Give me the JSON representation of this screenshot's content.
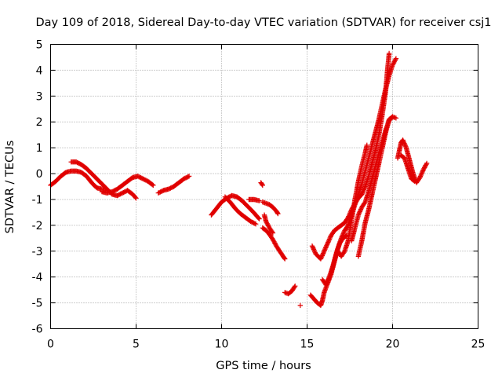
{
  "chart_data": {
    "type": "scatter",
    "title": "Day 109 of 2018, Sidereal Day-to-day VTEC variation (SDTVAR) for receiver csj1",
    "xlabel": "GPS time / hours",
    "ylabel": "SDTVAR / TECUs",
    "xlim": [
      0,
      25
    ],
    "ylim": [
      -6,
      5
    ],
    "xticks": [
      "0",
      "5",
      "10",
      "15",
      "20",
      "25"
    ],
    "yticks": [
      "-6",
      "-5",
      "-4",
      "-3",
      "-2",
      "-1",
      "0",
      "1",
      "2",
      "3",
      "4",
      "5"
    ],
    "grid": true,
    "marker": "+",
    "color": "#e00000",
    "series": [
      {
        "name": "csj1",
        "segments": [
          [
            [
              0.0,
              -0.45
            ],
            [
              0.3,
              -0.3
            ],
            [
              0.6,
              -0.1
            ],
            [
              0.9,
              0.05
            ],
            [
              1.2,
              0.1
            ],
            [
              1.5,
              0.1
            ],
            [
              1.8,
              0.05
            ],
            [
              2.1,
              -0.1
            ],
            [
              2.4,
              -0.35
            ],
            [
              2.7,
              -0.55
            ],
            [
              3.0,
              -0.6
            ],
            [
              3.2,
              -0.6
            ]
          ],
          [
            [
              1.2,
              0.45
            ],
            [
              1.5,
              0.45
            ],
            [
              1.8,
              0.35
            ],
            [
              2.1,
              0.2
            ],
            [
              2.4,
              0.0
            ],
            [
              2.7,
              -0.2
            ],
            [
              3.0,
              -0.4
            ],
            [
              3.3,
              -0.6
            ],
            [
              3.6,
              -0.8
            ],
            [
              3.9,
              -0.85
            ],
            [
              4.2,
              -0.75
            ],
            [
              4.5,
              -0.65
            ],
            [
              4.8,
              -0.8
            ],
            [
              5.0,
              -0.95
            ]
          ],
          [
            [
              3.0,
              -0.7
            ],
            [
              3.3,
              -0.75
            ],
            [
              3.6,
              -0.7
            ],
            [
              3.9,
              -0.6
            ],
            [
              4.2,
              -0.45
            ],
            [
              4.5,
              -0.3
            ],
            [
              4.8,
              -0.15
            ],
            [
              5.1,
              -0.1
            ],
            [
              5.4,
              -0.2
            ],
            [
              5.7,
              -0.3
            ],
            [
              6.0,
              -0.45
            ]
          ],
          [
            [
              6.3,
              -0.75
            ],
            [
              6.6,
              -0.65
            ],
            [
              6.9,
              -0.6
            ],
            [
              7.2,
              -0.5
            ],
            [
              7.5,
              -0.35
            ],
            [
              7.8,
              -0.2
            ],
            [
              8.1,
              -0.1
            ]
          ],
          [
            [
              9.4,
              -1.6
            ],
            [
              9.7,
              -1.35
            ],
            [
              10.0,
              -1.1
            ],
            [
              10.3,
              -0.95
            ],
            [
              10.6,
              -0.85
            ],
            [
              10.9,
              -0.9
            ],
            [
              11.2,
              -1.05
            ],
            [
              11.5,
              -1.25
            ],
            [
              11.8,
              -1.45
            ],
            [
              12.0,
              -1.6
            ],
            [
              12.2,
              -1.75
            ]
          ],
          [
            [
              10.2,
              -0.9
            ],
            [
              10.5,
              -1.1
            ],
            [
              10.8,
              -1.35
            ],
            [
              11.1,
              -1.55
            ],
            [
              11.4,
              -1.7
            ],
            [
              11.7,
              -1.85
            ],
            [
              12.0,
              -1.95
            ]
          ],
          [
            [
              11.6,
              -1.0
            ],
            [
              11.9,
              -1.0
            ],
            [
              12.2,
              -1.05
            ]
          ],
          [
            [
              12.3,
              -0.35
            ],
            [
              12.4,
              -0.45
            ]
          ],
          [
            [
              12.4,
              -1.1
            ],
            [
              12.6,
              -1.15
            ],
            [
              12.8,
              -1.2
            ],
            [
              13.0,
              -1.3
            ],
            [
              13.2,
              -1.45
            ],
            [
              13.3,
              -1.55
            ]
          ],
          [
            [
              12.4,
              -2.1
            ],
            [
              12.6,
              -2.2
            ],
            [
              12.8,
              -2.35
            ],
            [
              13.0,
              -2.55
            ],
            [
              13.2,
              -2.8
            ],
            [
              13.4,
              -3.0
            ],
            [
              13.6,
              -3.2
            ],
            [
              13.7,
              -3.3
            ]
          ],
          [
            [
              12.5,
              -1.6
            ],
            [
              12.6,
              -1.85
            ],
            [
              12.8,
              -2.1
            ],
            [
              13.0,
              -2.3
            ]
          ],
          [
            [
              13.7,
              -4.6
            ],
            [
              13.9,
              -4.65
            ],
            [
              14.1,
              -4.55
            ],
            [
              14.3,
              -4.35
            ]
          ],
          [
            [
              14.6,
              -5.1
            ]
          ],
          [
            [
              15.2,
              -4.7
            ],
            [
              15.4,
              -4.85
            ],
            [
              15.6,
              -5.0
            ],
            [
              15.8,
              -5.1
            ],
            [
              15.9,
              -4.9
            ],
            [
              16.0,
              -4.6
            ],
            [
              16.2,
              -4.25
            ],
            [
              16.4,
              -3.9
            ],
            [
              16.6,
              -3.4
            ],
            [
              16.8,
              -2.9
            ],
            [
              17.0,
              -2.5
            ],
            [
              17.2,
              -2.2
            ],
            [
              17.4,
              -2.0
            ],
            [
              17.6,
              -1.6
            ],
            [
              17.8,
              -1.2
            ],
            [
              18.0,
              -0.8
            ],
            [
              18.2,
              -0.4
            ],
            [
              18.4,
              0.1
            ],
            [
              18.6,
              0.6
            ],
            [
              18.8,
              1.1
            ],
            [
              19.0,
              1.6
            ],
            [
              19.2,
              2.1
            ],
            [
              19.4,
              2.7
            ],
            [
              19.6,
              3.3
            ],
            [
              19.8,
              3.8
            ],
            [
              20.0,
              4.2
            ],
            [
              20.2,
              4.45
            ]
          ],
          [
            [
              15.3,
              -2.8
            ],
            [
              15.5,
              -3.1
            ],
            [
              15.8,
              -3.3
            ],
            [
              16.0,
              -3.0
            ],
            [
              16.2,
              -2.7
            ],
            [
              16.4,
              -2.4
            ],
            [
              16.6,
              -2.2
            ],
            [
              16.8,
              -2.1
            ],
            [
              17.0,
              -2.0
            ],
            [
              17.2,
              -1.9
            ],
            [
              17.4,
              -1.7
            ],
            [
              17.6,
              -1.4
            ],
            [
              17.8,
              -1.15
            ],
            [
              18.0,
              -0.95
            ],
            [
              18.2,
              -0.8
            ],
            [
              18.4,
              -0.5
            ],
            [
              18.6,
              -0.1
            ],
            [
              18.8,
              0.4
            ],
            [
              19.0,
              0.9
            ],
            [
              19.2,
              1.5
            ],
            [
              19.4,
              2.3
            ],
            [
              19.6,
              3.2
            ],
            [
              19.7,
              4.0
            ],
            [
              19.8,
              4.65
            ]
          ],
          [
            [
              15.9,
              -4.1
            ],
            [
              16.1,
              -4.3
            ],
            [
              16.3,
              -4.0
            ],
            [
              16.5,
              -3.6
            ],
            [
              16.7,
              -3.1
            ],
            [
              16.9,
              -2.7
            ],
            [
              17.1,
              -2.5
            ],
            [
              17.3,
              -2.4
            ]
          ],
          [
            [
              16.8,
              -3.0
            ],
            [
              17.0,
              -3.2
            ],
            [
              17.2,
              -3.0
            ],
            [
              17.4,
              -2.6
            ],
            [
              17.6,
              -1.8
            ],
            [
              17.8,
              -1.0
            ],
            [
              18.0,
              -0.3
            ],
            [
              18.2,
              0.3
            ],
            [
              18.4,
              0.8
            ],
            [
              18.5,
              1.1
            ]
          ],
          [
            [
              17.6,
              -2.6
            ],
            [
              17.8,
              -2.1
            ],
            [
              18.0,
              -1.6
            ],
            [
              18.2,
              -1.3
            ],
            [
              18.4,
              -1.1
            ],
            [
              18.6,
              -0.7
            ],
            [
              18.8,
              -0.2
            ],
            [
              19.0,
              0.3
            ],
            [
              19.2,
              0.8
            ],
            [
              19.4,
              1.2
            ],
            [
              19.6,
              1.7
            ],
            [
              19.8,
              2.05
            ],
            [
              20.0,
              2.2
            ],
            [
              20.2,
              2.15
            ]
          ],
          [
            [
              18.0,
              -3.2
            ],
            [
              18.2,
              -2.6
            ],
            [
              18.4,
              -1.9
            ],
            [
              18.6,
              -1.4
            ],
            [
              18.8,
              -0.8
            ],
            [
              19.0,
              -0.2
            ],
            [
              19.2,
              0.4
            ],
            [
              19.4,
              1.0
            ],
            [
              19.6,
              1.6
            ],
            [
              19.8,
              2.1
            ],
            [
              20.0,
              2.2
            ]
          ],
          [
            [
              20.3,
              0.6
            ],
            [
              20.4,
              0.9
            ],
            [
              20.5,
              1.2
            ],
            [
              20.6,
              1.3
            ],
            [
              20.8,
              1.0
            ],
            [
              21.0,
              0.5
            ],
            [
              21.2,
              0.0
            ],
            [
              21.4,
              -0.35
            ],
            [
              21.6,
              -0.15
            ],
            [
              21.8,
              0.15
            ],
            [
              22.0,
              0.4
            ]
          ],
          [
            [
              20.5,
              0.7
            ],
            [
              20.7,
              0.6
            ],
            [
              20.9,
              0.2
            ],
            [
              21.1,
              -0.2
            ],
            [
              21.3,
              -0.3
            ]
          ]
        ]
      }
    ]
  }
}
